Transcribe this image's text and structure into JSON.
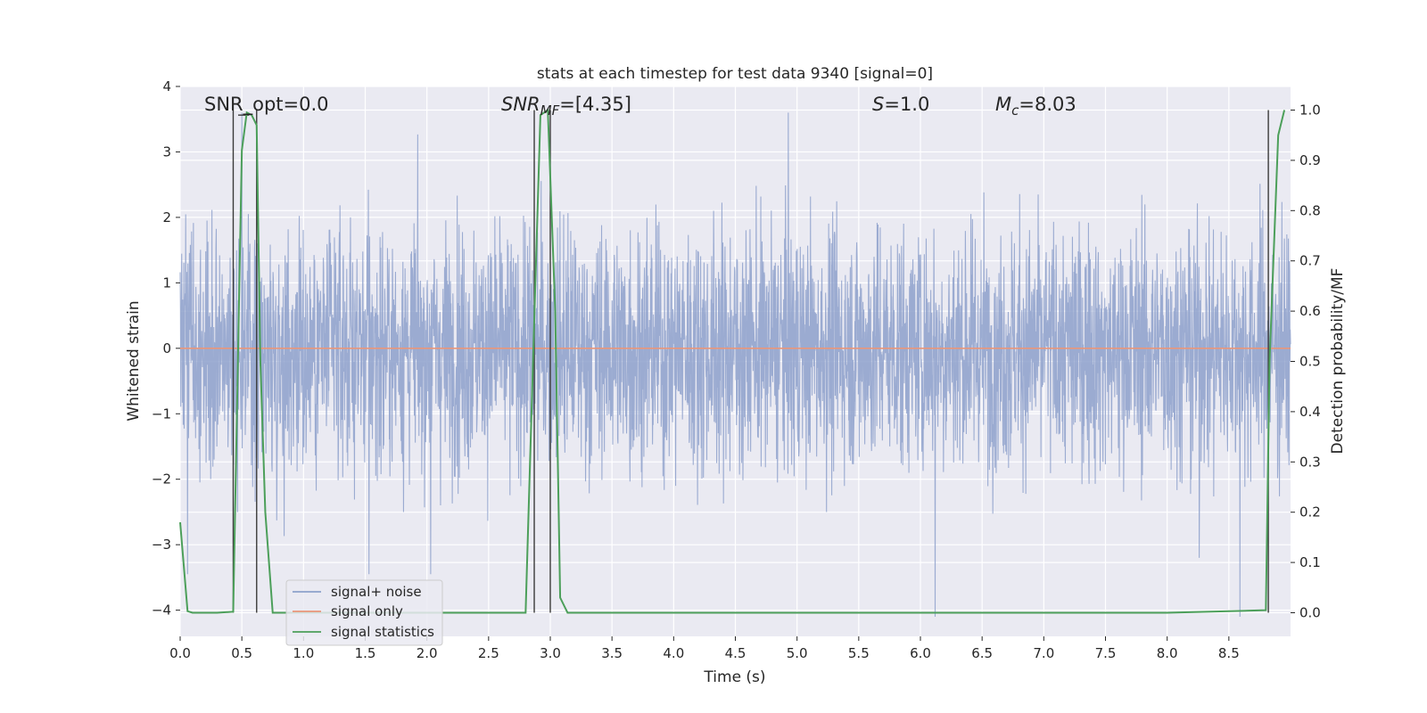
{
  "chart_data": {
    "type": "line",
    "title": "stats at each timestep for test data 9340 [signal=0]",
    "xlabel": "Time (s)",
    "ylabel": "Whitened strain",
    "y2label": "Detection probability/MF",
    "xlim": [
      0.0,
      9.0
    ],
    "ylim": [
      -4.4,
      4.0
    ],
    "y2lim": [
      -0.047,
      1.047
    ],
    "x_ticks": [
      "0.0",
      "0.5",
      "1.0",
      "1.5",
      "2.0",
      "2.5",
      "3.0",
      "3.5",
      "4.0",
      "4.5",
      "5.0",
      "5.5",
      "6.0",
      "6.5",
      "7.0",
      "7.5",
      "8.0",
      "8.5"
    ],
    "y_ticks": [
      "4",
      "3",
      "2",
      "1",
      "0",
      "−1",
      "−2",
      "−3",
      "−4"
    ],
    "y2_ticks": [
      "1.0",
      "0.9",
      "0.8",
      "0.7",
      "0.6",
      "0.5",
      "0.4",
      "0.3",
      "0.2",
      "0.1",
      "0.0"
    ],
    "grid": true,
    "legend_position": "lower-left",
    "annotations": {
      "snr_opt": "SNR_opt=0.0",
      "snr_mf": "SNR_MF=[4.35]",
      "s": "S=1.0",
      "mc": "M_c=8.03"
    },
    "series": [
      {
        "name": "signal+ noise",
        "color": "#8da0cb",
        "axis": "left",
        "description_range": [
          -4.1,
          3.6
        ],
        "spikes": [
          {
            "x": 0.06,
            "y": -3.45
          },
          {
            "x": 0.5,
            "y": 3.6
          },
          {
            "x": 1.53,
            "y": -3.45
          },
          {
            "x": 2.03,
            "y": -3.45
          },
          {
            "x": 4.93,
            "y": 3.6
          },
          {
            "x": 6.12,
            "y": -4.1
          },
          {
            "x": 8.59,
            "y": -4.1
          },
          {
            "x": 8.26,
            "y": -3.2
          }
        ]
      },
      {
        "name": "signal only",
        "color": "#e9967a",
        "axis": "left",
        "x": [
          0.0,
          9.0
        ],
        "y": [
          0.0,
          0.0
        ]
      },
      {
        "name": "signal statistics",
        "color": "#4c9f5a",
        "axis": "right",
        "x": [
          0.0,
          0.06,
          0.1,
          0.2,
          0.3,
          0.43,
          0.5,
          0.54,
          0.58,
          0.62,
          0.65,
          0.69,
          0.75,
          0.8,
          0.9,
          1.0,
          2.0,
          2.5,
          2.8,
          2.86,
          2.92,
          2.98,
          3.04,
          3.08,
          3.14,
          3.2,
          4.0,
          5.0,
          6.0,
          7.0,
          8.0,
          8.8,
          8.83,
          8.9,
          8.95
        ],
        "y": [
          0.18,
          0.003,
          0.0,
          0.0,
          0.0,
          0.002,
          0.92,
          0.995,
          0.99,
          0.97,
          0.5,
          0.2,
          0.0,
          0.0,
          0.0,
          0.0,
          0.0,
          0.0,
          0.0,
          0.5,
          0.99,
          1.0,
          0.6,
          0.03,
          0.0,
          0.0,
          0.0,
          0.0,
          0.0,
          0.0,
          0.0,
          0.005,
          0.5,
          0.95,
          1.0
        ]
      }
    ],
    "vlines": [
      0.43,
      0.62,
      2.87,
      3.0,
      8.82
    ]
  }
}
